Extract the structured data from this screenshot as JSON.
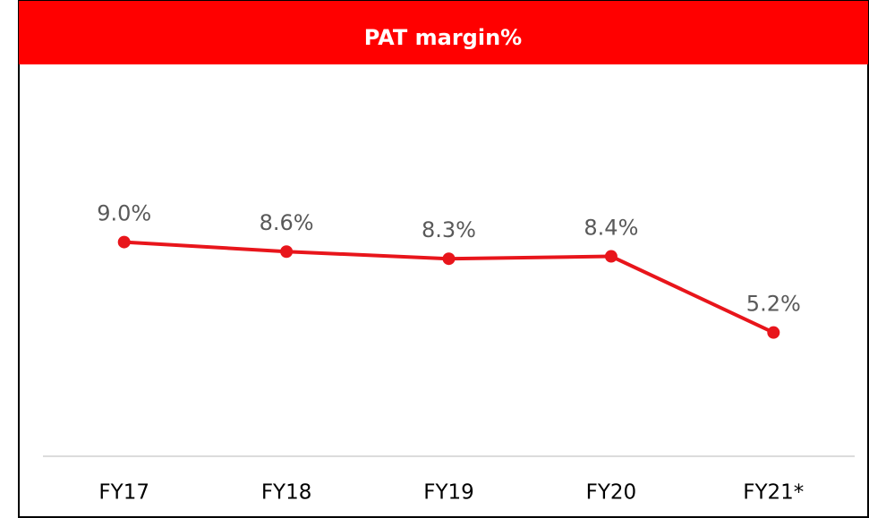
{
  "chart_data": {
    "type": "line",
    "title": "PAT margin%",
    "categories": [
      "FY17",
      "FY18",
      "FY19",
      "FY20",
      "FY21*"
    ],
    "values": [
      9.0,
      8.6,
      8.3,
      8.4,
      5.2
    ],
    "value_labels": [
      "9.0%",
      "8.6%",
      "8.3%",
      "8.4%",
      "5.2%"
    ],
    "color": "#e8151b"
  }
}
